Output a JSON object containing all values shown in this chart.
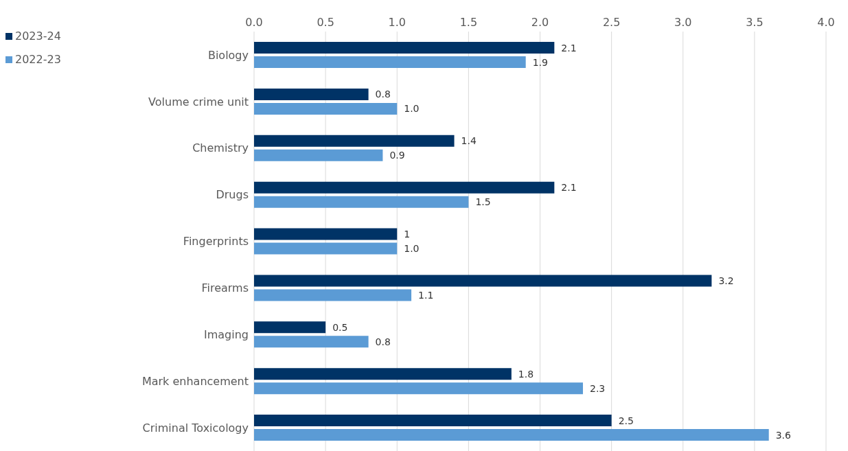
{
  "chart_data": {
    "type": "bar",
    "orientation": "horizontal",
    "categories": [
      "Biology",
      "Volume crime unit",
      "Chemistry",
      "Drugs",
      "Fingerprints",
      "Firearms",
      "Imaging",
      "Mark enhancement",
      "Criminal Toxicology"
    ],
    "series": [
      {
        "name": "2023-24",
        "color": "#003366",
        "values": [
          2.1,
          0.8,
          1.4,
          2.1,
          1,
          3.2,
          0.5,
          1.8,
          2.5
        ],
        "value_labels": [
          "2.1",
          "0.8",
          "1.4",
          "2.1",
          "1",
          "3.2",
          "0.5",
          "1.8",
          "2.5"
        ]
      },
      {
        "name": "2022-23",
        "color": "#5b9bd5",
        "values": [
          1.9,
          1.0,
          0.9,
          1.5,
          1.0,
          1.1,
          0.8,
          2.3,
          3.6
        ],
        "value_labels": [
          "1.9",
          "1.0",
          "0.9",
          "1.5",
          "1.0",
          "1.1",
          "0.8",
          "2.3",
          "3.6"
        ]
      }
    ],
    "xlim": [
      0,
      4
    ],
    "xticks": [
      {
        "value": 0,
        "label": "0.0"
      },
      {
        "value": 0.5,
        "label": "0.5"
      },
      {
        "value": 1,
        "label": "1.0"
      },
      {
        "value": 1.5,
        "label": "1.5"
      },
      {
        "value": 2,
        "label": "2.0"
      },
      {
        "value": 2.5,
        "label": "2.5"
      },
      {
        "value": 3,
        "label": "3.0"
      },
      {
        "value": 3.5,
        "label": "3.5"
      },
      {
        "value": 4,
        "label": "4.0"
      }
    ],
    "grid": "x",
    "legend": "top left"
  }
}
